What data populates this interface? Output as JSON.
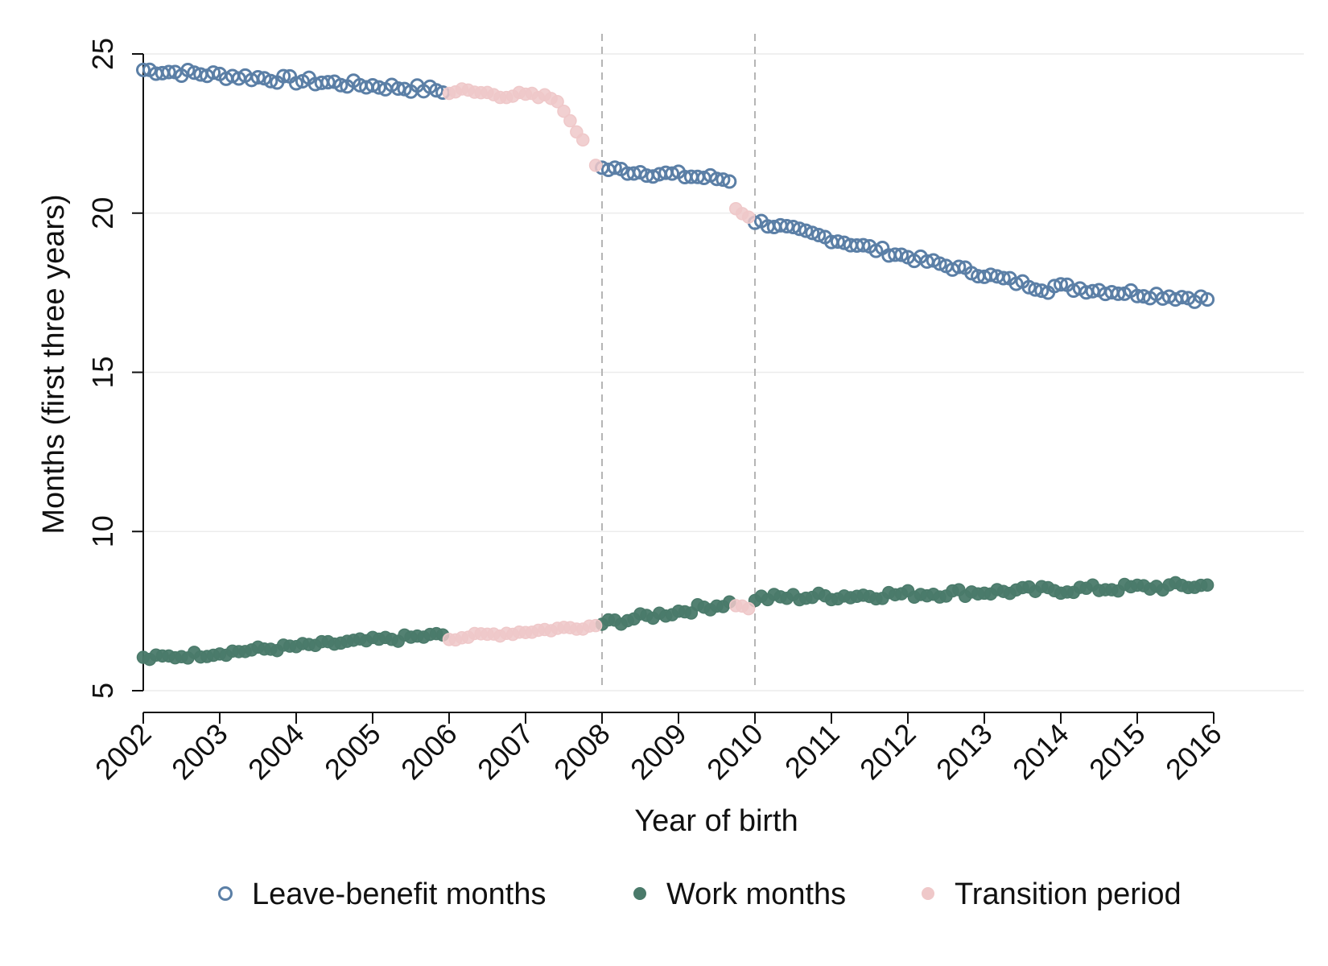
{
  "chart_data": {
    "type": "scatter",
    "title": "",
    "xlabel": "Year of birth",
    "ylabel": "Months (first three years)",
    "xlim": [
      2002,
      2016
    ],
    "ylim": [
      5,
      25
    ],
    "x_ticks": [
      "2002",
      "2003",
      "2004",
      "2005",
      "2006",
      "2007",
      "2008",
      "2009",
      "2010",
      "2011",
      "2012",
      "2013",
      "2014",
      "2015",
      "2016"
    ],
    "y_ticks": [
      "5",
      "10",
      "15",
      "20",
      "25"
    ],
    "grid": "horizontal",
    "reference_lines_x": [
      2008,
      2010
    ],
    "legend_position": "bottom",
    "series": [
      {
        "name": "Leave-benefit months",
        "marker": "hollow-circle",
        "color": "#5b7fa6",
        "segments": [
          {
            "x_start": 2002.0,
            "x_end": 2005.9167,
            "y_start": 24.5,
            "y_end": 23.85,
            "noise": 0.12
          },
          {
            "x_start": 2008.0,
            "x_end": 2009.6667,
            "y_start": 21.4,
            "y_end": 21.05,
            "noise": 0.12
          },
          {
            "x_start": 2010.0,
            "x_end": 2013.8333,
            "y_start": 19.75,
            "y_end": 17.6,
            "noise": 0.1
          },
          {
            "x_start": 2013.9167,
            "x_end": 2015.9167,
            "y_start": 17.7,
            "y_end": 17.3,
            "noise": 0.12
          }
        ]
      },
      {
        "name": "Work months",
        "marker": "filled-circle",
        "color": "#4a7a6a",
        "segments": [
          {
            "x_start": 2002.0,
            "x_end": 2005.9167,
            "y_start": 6.0,
            "y_end": 6.75,
            "noise": 0.1
          },
          {
            "x_start": 2008.0,
            "x_end": 2009.6667,
            "y_start": 7.1,
            "y_end": 7.75,
            "noise": 0.12
          },
          {
            "x_start": 2010.0,
            "x_end": 2015.9167,
            "y_start": 7.9,
            "y_end": 8.3,
            "noise": 0.13
          }
        ]
      },
      {
        "name": "Transition period",
        "marker": "filled-circle",
        "color": "#efc8c9",
        "segments": [
          {
            "x_start": 2006.0,
            "x_end": 2007.4167,
            "y_start": 23.85,
            "y_end": 23.6,
            "noise": 0.12
          },
          {
            "points": [
              [
                2007.5,
                23.2
              ],
              [
                2007.5833,
                22.9
              ],
              [
                2007.6667,
                22.55
              ],
              [
                2007.75,
                22.3
              ],
              [
                2007.9167,
                21.5
              ]
            ]
          },
          {
            "x_start": 2009.75,
            "x_end": 2009.9167,
            "y_start": 20.1,
            "y_end": 19.9,
            "noise": 0.05
          },
          {
            "x_start": 2006.0,
            "x_end": 2007.9167,
            "y_start": 6.65,
            "y_end": 7.05,
            "noise": 0.08
          },
          {
            "x_start": 2009.75,
            "x_end": 2009.9167,
            "y_start": 7.7,
            "y_end": 7.6,
            "noise": 0.03
          }
        ]
      }
    ]
  }
}
